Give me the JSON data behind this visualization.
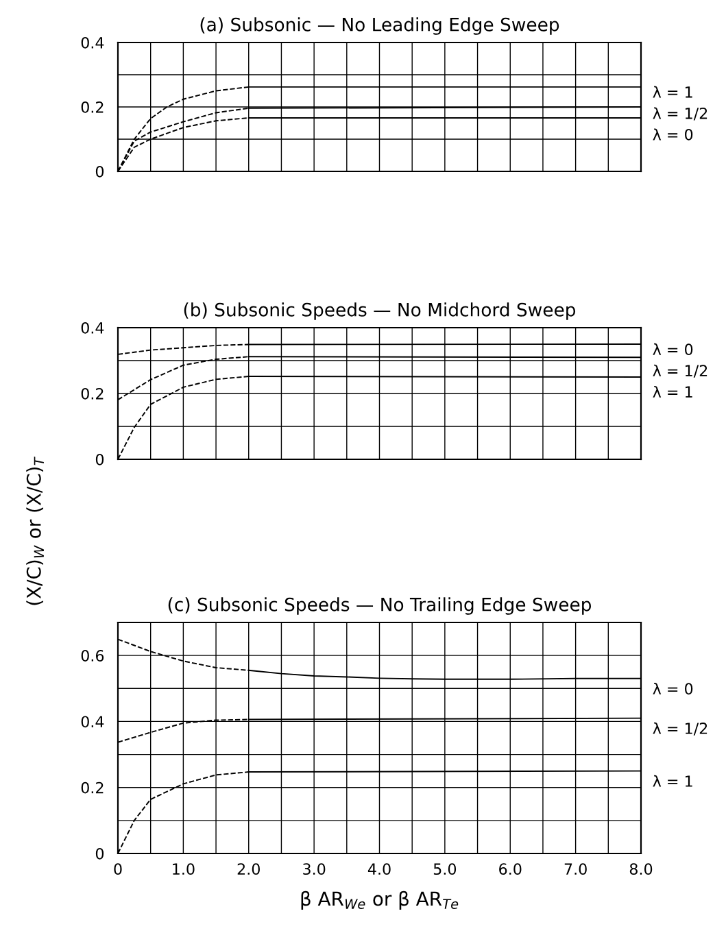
{
  "chart_data": [
    {
      "type": "line",
      "title": "(a) Subsonic — No Leading Edge Sweep",
      "xlim": [
        0,
        8
      ],
      "ylim": [
        0,
        0.4
      ],
      "tick_labels": "y",
      "grid": true,
      "xticks": [
        {
          "value": 0,
          "label": null
        },
        {
          "value": 0.5,
          "label": null
        },
        {
          "value": 1,
          "label": null
        },
        {
          "value": 1.5,
          "label": null
        },
        {
          "value": 2,
          "label": null
        },
        {
          "value": 2.5,
          "label": null
        },
        {
          "value": 3,
          "label": null
        },
        {
          "value": 3.5,
          "label": null
        },
        {
          "value": 4,
          "label": null
        },
        {
          "value": 4.5,
          "label": null
        },
        {
          "value": 5,
          "label": null
        },
        {
          "value": 5.5,
          "label": null
        },
        {
          "value": 6,
          "label": null
        },
        {
          "value": 6.5,
          "label": null
        },
        {
          "value": 7,
          "label": null
        },
        {
          "value": 7.5,
          "label": null
        },
        {
          "value": 8,
          "label": null
        }
      ],
      "yticks": [
        0,
        {
          "value": 0.1,
          "label": null
        },
        0.2,
        {
          "value": 0.3,
          "label": null
        },
        0.4
      ],
      "series": [
        {
          "color": "#000000",
          "line_style": "dashed",
          "x": [
            0,
            0.25,
            0.5,
            0.75,
            1,
            1.5,
            2
          ],
          "values": [
            0,
            0.1,
            0.164,
            0.2,
            0.224,
            0.25,
            0.262
          ]
        },
        {
          "name": "λ = 1",
          "color": "#000000",
          "line_style": "solid",
          "x": [
            2,
            8
          ],
          "values": [
            0.262,
            0.262
          ]
        },
        {
          "color": "#000000",
          "line_style": "dashed",
          "x": [
            0,
            0.25,
            0.5,
            1,
            1.5,
            2
          ],
          "values": [
            0,
            0.094,
            0.122,
            0.154,
            0.182,
            0.196
          ]
        },
        {
          "name": "λ = 1/2",
          "color": "#000000",
          "line_style": "solid",
          "x": [
            2,
            8
          ],
          "values": [
            0.196,
            0.2
          ]
        },
        {
          "color": "#000000",
          "line_style": "dashed",
          "x": [
            0,
            0.25,
            0.5,
            1,
            1.5,
            2
          ],
          "values": [
            0,
            0.075,
            0.1,
            0.136,
            0.157,
            0.166
          ]
        },
        {
          "name": "λ = 0",
          "color": "#000000",
          "line_style": "solid",
          "x": [
            2,
            8
          ],
          "values": [
            0.166,
            0.166
          ]
        }
      ]
    },
    {
      "type": "line",
      "title": "(b) Subsonic Speeds — No Midchord Sweep",
      "xlim": [
        0,
        8
      ],
      "ylim": [
        0,
        0.4
      ],
      "tick_labels": "y",
      "grid": true,
      "ylabel": "(X/C)$_{W}$ or (X/C)$_{T}$",
      "xticks": [
        {
          "value": 0,
          "label": null
        },
        {
          "value": 0.5,
          "label": null
        },
        {
          "value": 1,
          "label": null
        },
        {
          "value": 1.5,
          "label": null
        },
        {
          "value": 2,
          "label": null
        },
        {
          "value": 2.5,
          "label": null
        },
        {
          "value": 3,
          "label": null
        },
        {
          "value": 3.5,
          "label": null
        },
        {
          "value": 4,
          "label": null
        },
        {
          "value": 4.5,
          "label": null
        },
        {
          "value": 5,
          "label": null
        },
        {
          "value": 5.5,
          "label": null
        },
        {
          "value": 6,
          "label": null
        },
        {
          "value": 6.5,
          "label": null
        },
        {
          "value": 7,
          "label": null
        },
        {
          "value": 7.5,
          "label": null
        },
        {
          "value": 8,
          "label": null
        }
      ],
      "yticks": [
        0,
        {
          "value": 0.1,
          "label": null
        },
        0.2,
        {
          "value": 0.3,
          "label": null
        },
        0.4
      ],
      "series": [
        {
          "color": "#000000",
          "line_style": "dashed",
          "x": [
            0,
            0.5,
            1,
            1.5,
            2
          ],
          "values": [
            0.319,
            0.332,
            0.339,
            0.346,
            0.349
          ]
        },
        {
          "name": "λ = 0",
          "color": "#000000",
          "line_style": "solid",
          "x": [
            2,
            8
          ],
          "values": [
            0.349,
            0.35
          ]
        },
        {
          "color": "#000000",
          "line_style": "dashed",
          "x": [
            0,
            0.5,
            1,
            1.5,
            2
          ],
          "values": [
            0.181,
            0.242,
            0.286,
            0.304,
            0.312
          ]
        },
        {
          "name": "λ = 1/2",
          "color": "#000000",
          "line_style": "solid",
          "x": [
            2,
            8
          ],
          "values": [
            0.312,
            0.31
          ]
        },
        {
          "color": "#000000",
          "line_style": "dashed",
          "x": [
            0,
            0.25,
            0.5,
            1,
            1.5,
            2
          ],
          "values": [
            0,
            0.097,
            0.167,
            0.219,
            0.243,
            0.252
          ]
        },
        {
          "name": "λ = 1",
          "color": "#000000",
          "line_style": "solid",
          "x": [
            2,
            8
          ],
          "values": [
            0.252,
            0.25
          ]
        }
      ]
    },
    {
      "type": "line",
      "title": "(c) Subsonic Speeds — No Trailing Edge Sweep",
      "xlim": [
        0,
        8
      ],
      "ylim": [
        0,
        0.7
      ],
      "grid": true,
      "xlabel": "β AR$_{We}$ or β AR$_{Te}$",
      "xticks": [
        0,
        {
          "value": 0.5,
          "label": null
        },
        {
          "value": 1,
          "label": "1.0"
        },
        {
          "value": 1.5,
          "label": null
        },
        {
          "value": 2,
          "label": "2.0"
        },
        {
          "value": 2.5,
          "label": null
        },
        {
          "value": 3,
          "label": "3.0"
        },
        {
          "value": 3.5,
          "label": null
        },
        {
          "value": 4,
          "label": "4.0"
        },
        {
          "value": 4.5,
          "label": null
        },
        {
          "value": 5,
          "label": "5.0"
        },
        {
          "value": 5.5,
          "label": null
        },
        {
          "value": 6,
          "label": "6.0"
        },
        {
          "value": 6.5,
          "label": null
        },
        {
          "value": 7,
          "label": "7.0"
        },
        {
          "value": 7.5,
          "label": null
        },
        {
          "value": 8,
          "label": "8.0"
        }
      ],
      "yticks": [
        0,
        {
          "value": 0.1,
          "label": null
        },
        0.2,
        {
          "value": 0.3,
          "label": null
        },
        0.4,
        {
          "value": 0.5,
          "label": null
        },
        0.6,
        {
          "value": 0.7,
          "label": null
        }
      ],
      "series": [
        {
          "color": "#000000",
          "line_style": "dashed",
          "x": [
            0,
            0.5,
            1,
            1.5,
            2
          ],
          "values": [
            0.649,
            0.612,
            0.583,
            0.563,
            0.555
          ]
        },
        {
          "name": "λ = 0",
          "color": "#000000",
          "line_style": "solid",
          "x": [
            2,
            2.5,
            3,
            3.5,
            4,
            4.5,
            5,
            6,
            7,
            8
          ],
          "values": [
            0.555,
            0.545,
            0.538,
            0.535,
            0.531,
            0.529,
            0.528,
            0.528,
            0.53,
            0.53
          ]
        },
        {
          "color": "#000000",
          "line_style": "dashed",
          "x": [
            0,
            0.5,
            1,
            1.5,
            2
          ],
          "values": [
            0.337,
            0.367,
            0.395,
            0.404,
            0.406
          ]
        },
        {
          "name": "λ = 1/2",
          "color": "#000000",
          "line_style": "solid",
          "x": [
            2,
            8
          ],
          "values": [
            0.406,
            0.41
          ]
        },
        {
          "color": "#000000",
          "line_style": "dashed",
          "x": [
            0,
            0.25,
            0.5,
            1,
            1.5,
            2
          ],
          "values": [
            0,
            0.1,
            0.164,
            0.211,
            0.238,
            0.247
          ]
        },
        {
          "name": "λ = 1",
          "color": "#000000",
          "line_style": "solid",
          "x": [
            2,
            8
          ],
          "values": [
            0.247,
            0.25
          ]
        }
      ]
    }
  ]
}
